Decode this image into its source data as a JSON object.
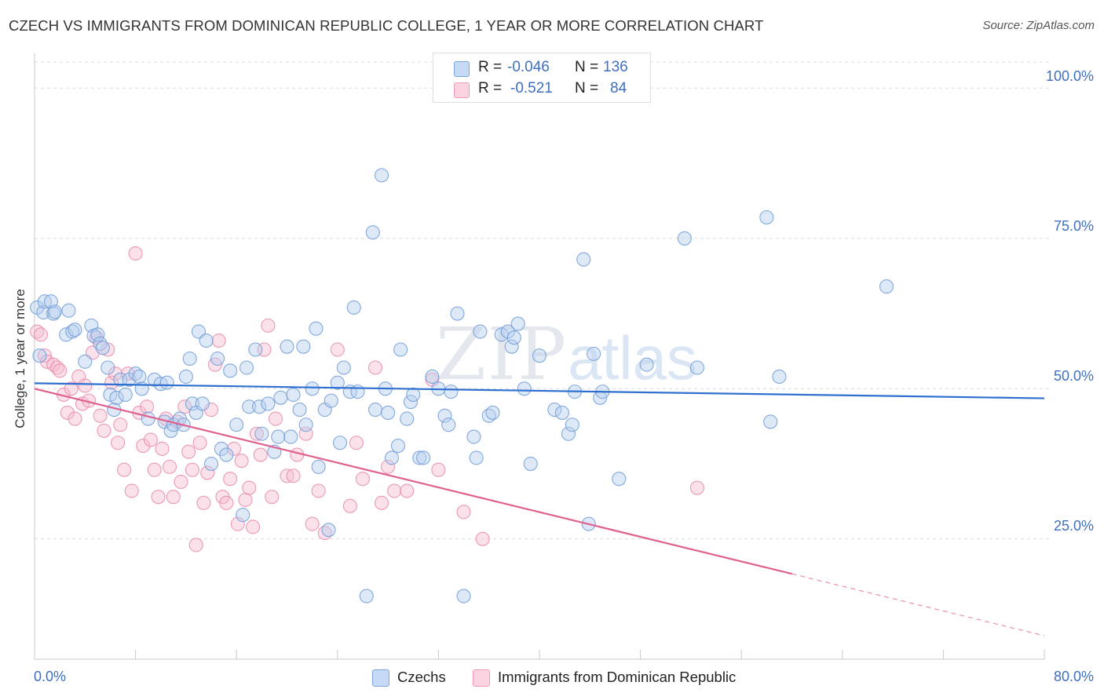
{
  "header": {
    "title": "CZECH VS IMMIGRANTS FROM DOMINICAN REPUBLIC COLLEGE, 1 YEAR OR MORE CORRELATION CHART",
    "source": "Source: ZipAtlas.com"
  },
  "watermark": {
    "zip": "ZIP",
    "atlas": "atlas"
  },
  "legend": {
    "czechs": {
      "r_label": "R =",
      "r_value": "-0.046",
      "n_label": "N =",
      "n_value": "136",
      "name": "Czechs",
      "color": "#7aa6e0"
    },
    "dominican": {
      "r_label": "R =",
      "r_value": "-0.521",
      "n_label": "N =",
      "n_value": "84",
      "name": "Immigrants from Dominican Republic",
      "color": "#f09ab8"
    }
  },
  "chart_data": {
    "type": "scatter",
    "title": "CZECH VS IMMIGRANTS FROM DOMINICAN REPUBLIC COLLEGE, 1 YEAR OR MORE CORRELATION CHART",
    "xlabel": "",
    "ylabel": "College, 1 year or more",
    "xlim": [
      0,
      80
    ],
    "ylim": [
      5,
      105
    ],
    "x_tick_labels": [
      "0.0%",
      "80.0%"
    ],
    "y_tick_labels": [
      {
        "value": 100,
        "label": "100.0%"
      },
      {
        "value": 75,
        "label": "75.0%"
      },
      {
        "value": 50,
        "label": "50.0%"
      },
      {
        "value": 25,
        "label": "25.0%"
      }
    ],
    "grid": "horizontal dashed",
    "legend_placement": "top-center",
    "series": [
      {
        "name": "Czechs",
        "color": "#7aa6e0",
        "line_color": "#2f6fcf",
        "trend": {
          "x": [
            0,
            80
          ],
          "y": [
            50.9,
            48.4
          ]
        },
        "points": [
          [
            0.2,
            63.5
          ],
          [
            0.4,
            55.5
          ],
          [
            0.7,
            62.7
          ],
          [
            0.8,
            64.5
          ],
          [
            1.3,
            64.5
          ],
          [
            1.5,
            62.5
          ],
          [
            1.6,
            62.8
          ],
          [
            2.5,
            59.0
          ],
          [
            2.7,
            63.0
          ],
          [
            3.0,
            59.5
          ],
          [
            3.2,
            59.8
          ],
          [
            4.5,
            60.5
          ],
          [
            4.7,
            58.8
          ],
          [
            5.0,
            59.0
          ],
          [
            5.2,
            57.5
          ],
          [
            5.4,
            56.8
          ],
          [
            4.0,
            54.5
          ],
          [
            5.8,
            53.5
          ],
          [
            6.0,
            49.0
          ],
          [
            6.3,
            46.5
          ],
          [
            6.5,
            48.5
          ],
          [
            6.8,
            51.5
          ],
          [
            7.2,
            49.0
          ],
          [
            7.5,
            51.5
          ],
          [
            8.0,
            52.5
          ],
          [
            8.3,
            52.0
          ],
          [
            8.5,
            50.0
          ],
          [
            9.0,
            45.0
          ],
          [
            9.5,
            51.5
          ],
          [
            10.0,
            50.8
          ],
          [
            10.3,
            44.5
          ],
          [
            10.5,
            51.0
          ],
          [
            10.8,
            43.0
          ],
          [
            11.0,
            44.0
          ],
          [
            11.5,
            45.0
          ],
          [
            11.8,
            44.0
          ],
          [
            12.0,
            52.0
          ],
          [
            12.3,
            55.0
          ],
          [
            12.5,
            47.5
          ],
          [
            12.8,
            46.0
          ],
          [
            13.0,
            59.5
          ],
          [
            13.3,
            47.5
          ],
          [
            13.6,
            58.0
          ],
          [
            14.0,
            37.5
          ],
          [
            14.5,
            55.0
          ],
          [
            14.8,
            40.0
          ],
          [
            15.2,
            39.0
          ],
          [
            15.5,
            53.0
          ],
          [
            16.0,
            44.0
          ],
          [
            16.5,
            29.0
          ],
          [
            16.8,
            53.5
          ],
          [
            17.0,
            47.0
          ],
          [
            17.5,
            56.5
          ],
          [
            17.8,
            47.0
          ],
          [
            18.0,
            42.5
          ],
          [
            18.5,
            47.5
          ],
          [
            19.0,
            39.5
          ],
          [
            19.3,
            42.0
          ],
          [
            19.5,
            48.5
          ],
          [
            20.0,
            57.0
          ],
          [
            20.3,
            42.0
          ],
          [
            20.5,
            49.0
          ],
          [
            21.0,
            46.5
          ],
          [
            21.3,
            57.0
          ],
          [
            21.5,
            44.0
          ],
          [
            22.0,
            50.0
          ],
          [
            22.3,
            60.0
          ],
          [
            22.5,
            37.0
          ],
          [
            23.0,
            46.5
          ],
          [
            23.3,
            26.5
          ],
          [
            23.5,
            48.0
          ],
          [
            24.0,
            51.0
          ],
          [
            24.2,
            41.0
          ],
          [
            24.5,
            53.5
          ],
          [
            25.0,
            49.5
          ],
          [
            25.3,
            63.5
          ],
          [
            25.6,
            49.5
          ],
          [
            26.3,
            15.5
          ],
          [
            26.8,
            76.0
          ],
          [
            27.0,
            46.5
          ],
          [
            27.5,
            85.5
          ],
          [
            27.8,
            50.0
          ],
          [
            28.0,
            46.0
          ],
          [
            28.3,
            38.5
          ],
          [
            28.8,
            40.5
          ],
          [
            29.0,
            56.5
          ],
          [
            29.5,
            45.0
          ],
          [
            29.8,
            47.8
          ],
          [
            30.0,
            49.0
          ],
          [
            30.5,
            38.5
          ],
          [
            30.8,
            38.5
          ],
          [
            31.5,
            52.0
          ],
          [
            32.0,
            50.0
          ],
          [
            32.5,
            45.5
          ],
          [
            32.8,
            44.0
          ],
          [
            33.0,
            49.5
          ],
          [
            33.5,
            62.5
          ],
          [
            34.0,
            15.5
          ],
          [
            34.8,
            42.0
          ],
          [
            35.0,
            38.5
          ],
          [
            35.3,
            59.5
          ],
          [
            36.0,
            45.5
          ],
          [
            36.3,
            46.0
          ],
          [
            37.0,
            59.0
          ],
          [
            37.5,
            59.5
          ],
          [
            37.8,
            57.0
          ],
          [
            38.0,
            58.5
          ],
          [
            38.3,
            60.8
          ],
          [
            38.8,
            50.0
          ],
          [
            39.3,
            37.5
          ],
          [
            40.0,
            55.5
          ],
          [
            41.2,
            46.5
          ],
          [
            41.8,
            46.0
          ],
          [
            42.3,
            42.5
          ],
          [
            42.6,
            44.0
          ],
          [
            42.8,
            49.5
          ],
          [
            43.5,
            71.5
          ],
          [
            43.9,
            27.5
          ],
          [
            44.3,
            55.8
          ],
          [
            44.8,
            48.5
          ],
          [
            45.0,
            49.5
          ],
          [
            46.3,
            35.0
          ],
          [
            48.5,
            54.0
          ],
          [
            51.5,
            75.0
          ],
          [
            52.5,
            53.5
          ],
          [
            58.0,
            78.5
          ],
          [
            58.3,
            44.5
          ],
          [
            59.0,
            52.0
          ],
          [
            67.5,
            67.0
          ]
        ]
      },
      {
        "name": "Immigrants from Dominican Republic",
        "color": "#f09ab8",
        "line_color": "#e0608f",
        "trend": {
          "x": [
            0,
            60
          ],
          "y": [
            50.0,
            19.2
          ]
        },
        "trend_dashed": {
          "x": [
            60,
            80
          ],
          "y": [
            19.2,
            8.9
          ]
        },
        "points": [
          [
            0.2,
            59.5
          ],
          [
            0.5,
            59.0
          ],
          [
            0.8,
            55.5
          ],
          [
            1.0,
            54.5
          ],
          [
            1.5,
            54.0
          ],
          [
            1.8,
            53.5
          ],
          [
            2.0,
            53.0
          ],
          [
            2.3,
            49.0
          ],
          [
            2.6,
            46.0
          ],
          [
            2.9,
            50.0
          ],
          [
            3.2,
            45.0
          ],
          [
            3.5,
            52.0
          ],
          [
            3.8,
            47.5
          ],
          [
            4.0,
            50.5
          ],
          [
            4.3,
            48.0
          ],
          [
            4.6,
            56.0
          ],
          [
            4.9,
            58.5
          ],
          [
            5.2,
            45.5
          ],
          [
            5.5,
            43.0
          ],
          [
            5.8,
            56.5
          ],
          [
            6.1,
            51.0
          ],
          [
            6.4,
            52.5
          ],
          [
            6.6,
            41.0
          ],
          [
            6.8,
            44.0
          ],
          [
            7.1,
            36.5
          ],
          [
            7.4,
            52.5
          ],
          [
            7.7,
            33.0
          ],
          [
            8.0,
            72.5
          ],
          [
            8.3,
            46.0
          ],
          [
            8.6,
            40.5
          ],
          [
            8.9,
            47.0
          ],
          [
            9.2,
            41.5
          ],
          [
            9.5,
            36.5
          ],
          [
            9.8,
            32.0
          ],
          [
            10.1,
            40.0
          ],
          [
            10.4,
            45.0
          ],
          [
            10.7,
            37.0
          ],
          [
            11.0,
            32.0
          ],
          [
            11.3,
            44.5
          ],
          [
            11.6,
            34.5
          ],
          [
            11.9,
            47.0
          ],
          [
            12.2,
            39.5
          ],
          [
            12.5,
            36.5
          ],
          [
            12.8,
            24.0
          ],
          [
            13.1,
            41.0
          ],
          [
            13.4,
            31.0
          ],
          [
            13.7,
            36.0
          ],
          [
            14.0,
            46.5
          ],
          [
            14.3,
            54.0
          ],
          [
            14.6,
            58.0
          ],
          [
            14.9,
            32.0
          ],
          [
            15.2,
            31.0
          ],
          [
            15.5,
            35.0
          ],
          [
            15.8,
            40.0
          ],
          [
            16.1,
            27.5
          ],
          [
            16.4,
            38.0
          ],
          [
            16.7,
            31.5
          ],
          [
            17.0,
            33.5
          ],
          [
            17.3,
            27.0
          ],
          [
            17.6,
            42.5
          ],
          [
            17.9,
            39.0
          ],
          [
            18.2,
            56.5
          ],
          [
            18.5,
            60.5
          ],
          [
            18.8,
            32.0
          ],
          [
            19.1,
            45.0
          ],
          [
            20.0,
            35.5
          ],
          [
            20.5,
            35.5
          ],
          [
            20.8,
            39.0
          ],
          [
            21.5,
            42.5
          ],
          [
            22.0,
            27.5
          ],
          [
            22.5,
            33.0
          ],
          [
            23.0,
            26.0
          ],
          [
            24.0,
            56.5
          ],
          [
            25.0,
            30.5
          ],
          [
            25.5,
            41.0
          ],
          [
            26.0,
            35.0
          ],
          [
            27.0,
            53.5
          ],
          [
            27.5,
            31.0
          ],
          [
            28.0,
            37.0
          ],
          [
            28.5,
            33.0
          ],
          [
            29.5,
            33.0
          ],
          [
            31.5,
            51.5
          ],
          [
            32.0,
            36.5
          ],
          [
            34.0,
            29.5
          ],
          [
            35.5,
            25.0
          ],
          [
            52.5,
            33.5
          ]
        ]
      }
    ]
  }
}
